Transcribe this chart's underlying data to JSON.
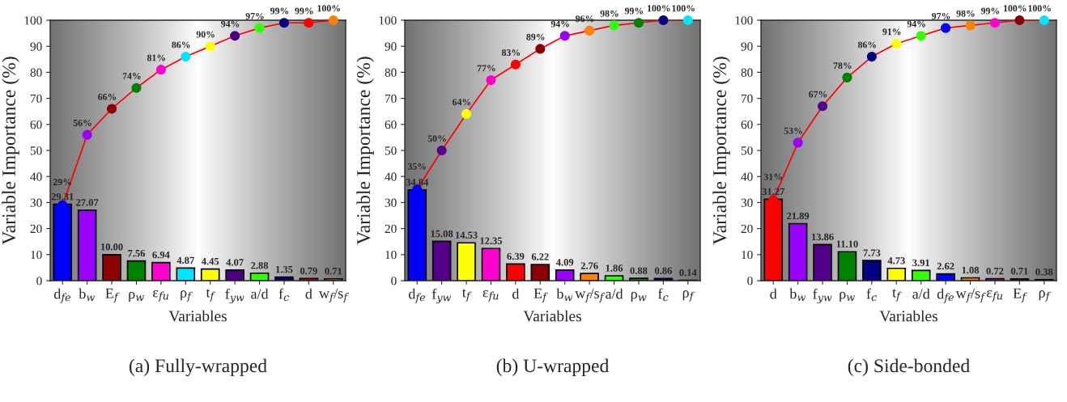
{
  "chart_data": [
    {
      "type": "bar",
      "xlabel": "Variables",
      "ylabel": "Variable Importance (%)",
      "categories": [
        "d$_{fe}$",
        "b$_{w}$",
        "E$_{f}$",
        "ρ$_{w}$",
        "ε$_{fu}$",
        "ρ$_{f}$",
        "t$_{f}$",
        "f$_{yw}$",
        "a/d",
        "f$_{c}$",
        "d",
        "w$_{f}$/s$_{f}$"
      ],
      "ylim": [
        0,
        100
      ],
      "yticks": [
        0,
        10,
        20,
        30,
        40,
        50,
        60,
        70,
        80,
        90,
        100
      ],
      "grid": false,
      "annotations": [
        "(a) Fully-wrapped"
      ],
      "series": [
        {
          "values": [
            29.31,
            27.07,
            10.0,
            7.56,
            6.94,
            4.87,
            4.45,
            4.07,
            2.88,
            1.35,
            0.79,
            0.71
          ],
          "value_labels": [
            "29.31",
            "27.07",
            "10.00",
            "7.56",
            "6.94",
            "4.87",
            "4.45",
            "4.07",
            "2.88",
            "1.35",
            "0.79",
            "0.71"
          ],
          "colors": [
            "#0000ff",
            "#9900ff",
            "#8b0000",
            "#008000",
            "#ff00cc",
            "#00e5ff",
            "#ffff00",
            "#4b0082",
            "#33ff00",
            "#000080",
            "#ff0000",
            "#ff8000"
          ]
        },
        {
          "type": "line",
          "color": "#ff0000",
          "marker": "circle",
          "values": [
            29,
            56,
            66,
            74,
            81,
            86,
            90,
            94,
            97,
            99,
            99,
            100
          ],
          "value_labels": [
            "29%",
            "56%",
            "66%",
            "74%",
            "81%",
            "86%",
            "90%",
            "94%",
            "97%",
            "99%",
            "99%",
            "100%"
          ],
          "colors": [
            "#0000ff",
            "#9900ff",
            "#8b0000",
            "#008000",
            "#ff00cc",
            "#00e5ff",
            "#ffff00",
            "#4b0082",
            "#33ff00",
            "#000080",
            "#ff0000",
            "#ff8000"
          ]
        }
      ]
    },
    {
      "type": "bar",
      "xlabel": "Variables",
      "ylabel": "Variable Importance (%)",
      "categories": [
        "d$_{fe}$",
        "f$_{yw}$",
        "t$_{f}$",
        "ε$_{fu}$",
        "d",
        "E$_{f}$",
        "b$_{w}$",
        "w$_{f}$/s$_{f}$",
        "a/d",
        "ρ$_{w}$",
        "f$_{c}$",
        "ρ$_{f}$"
      ],
      "ylim": [
        0,
        100
      ],
      "yticks": [
        0,
        10,
        20,
        30,
        40,
        50,
        60,
        70,
        80,
        90,
        100
      ],
      "grid": false,
      "annotations": [
        "(b) U-wrapped"
      ],
      "series": [
        {
          "values": [
            34.84,
            15.08,
            14.53,
            12.35,
            6.39,
            6.22,
            4.09,
            2.76,
            1.86,
            0.88,
            0.86,
            0.14
          ],
          "value_labels": [
            "34.84",
            "15.08",
            "14.53",
            "12.35",
            "6.39",
            "6.22",
            "4.09",
            "2.76",
            "1.86",
            "0.88",
            "0.86",
            "0.14"
          ],
          "colors": [
            "#0000ff",
            "#55008b",
            "#ffff00",
            "#ff00cc",
            "#ff0000",
            "#8b0000",
            "#9900ff",
            "#ff8000",
            "#33ff00",
            "#008000",
            "#000080",
            "#00e5ff"
          ]
        },
        {
          "type": "line",
          "color": "#ff0000",
          "marker": "circle",
          "values": [
            35,
            50,
            64,
            77,
            83,
            89,
            94,
            96,
            98,
            99,
            100,
            100
          ],
          "value_labels": [
            "35%",
            "50%",
            "64%",
            "77%",
            "83%",
            "89%",
            "94%",
            "96%",
            "98%",
            "99%",
            "100%",
            "100%"
          ],
          "colors": [
            "#0000ff",
            "#55008b",
            "#ffff00",
            "#ff00cc",
            "#ff0000",
            "#8b0000",
            "#9900ff",
            "#ff8000",
            "#33ff00",
            "#008000",
            "#000080",
            "#00e5ff"
          ]
        }
      ]
    },
    {
      "type": "bar",
      "xlabel": "Variables",
      "ylabel": "Variable Importance (%)",
      "categories": [
        "d",
        "b$_{w}$",
        "f$_{yw}$",
        "ρ$_{w}$",
        "f$_{c}$",
        "t$_{f}$",
        "a/d",
        "d$_{fe}$",
        "w$_{f}$/s$_{f}$",
        "ε$_{fu}$",
        "E$_{f}$",
        "ρ$_{f}$"
      ],
      "ylim": [
        0,
        100
      ],
      "yticks": [
        0,
        10,
        20,
        30,
        40,
        50,
        60,
        70,
        80,
        90,
        100
      ],
      "grid": false,
      "annotations": [
        "(c) Side-bonded"
      ],
      "series": [
        {
          "values": [
            31.27,
            21.89,
            13.86,
            11.1,
            7.73,
            4.73,
            3.91,
            2.62,
            1.08,
            0.72,
            0.71,
            0.38
          ],
          "value_labels": [
            "31.27",
            "21.89",
            "13.86",
            "11.10",
            "7.73",
            "4.73",
            "3.91",
            "2.62",
            "1.08",
            "0.72",
            "0.71",
            "0.38"
          ],
          "colors": [
            "#ff0000",
            "#9900ff",
            "#55008b",
            "#008000",
            "#000080",
            "#ffff00",
            "#33ff00",
            "#0000ff",
            "#ff8000",
            "#ff00cc",
            "#8b0000",
            "#00e5ff"
          ]
        },
        {
          "type": "line",
          "color": "#ff0000",
          "marker": "circle",
          "values": [
            31,
            53,
            67,
            78,
            86,
            91,
            94,
            97,
            98,
            99,
            100,
            100
          ],
          "value_labels": [
            "31%",
            "53%",
            "67%",
            "78%",
            "86%",
            "91%",
            "94%",
            "97%",
            "98%",
            "99%",
            "100%",
            "100%"
          ],
          "colors": [
            "#ff0000",
            "#9900ff",
            "#55008b",
            "#008000",
            "#000080",
            "#ffff00",
            "#33ff00",
            "#0000ff",
            "#ff8000",
            "#ff00cc",
            "#8b0000",
            "#00e5ff"
          ]
        }
      ]
    }
  ]
}
